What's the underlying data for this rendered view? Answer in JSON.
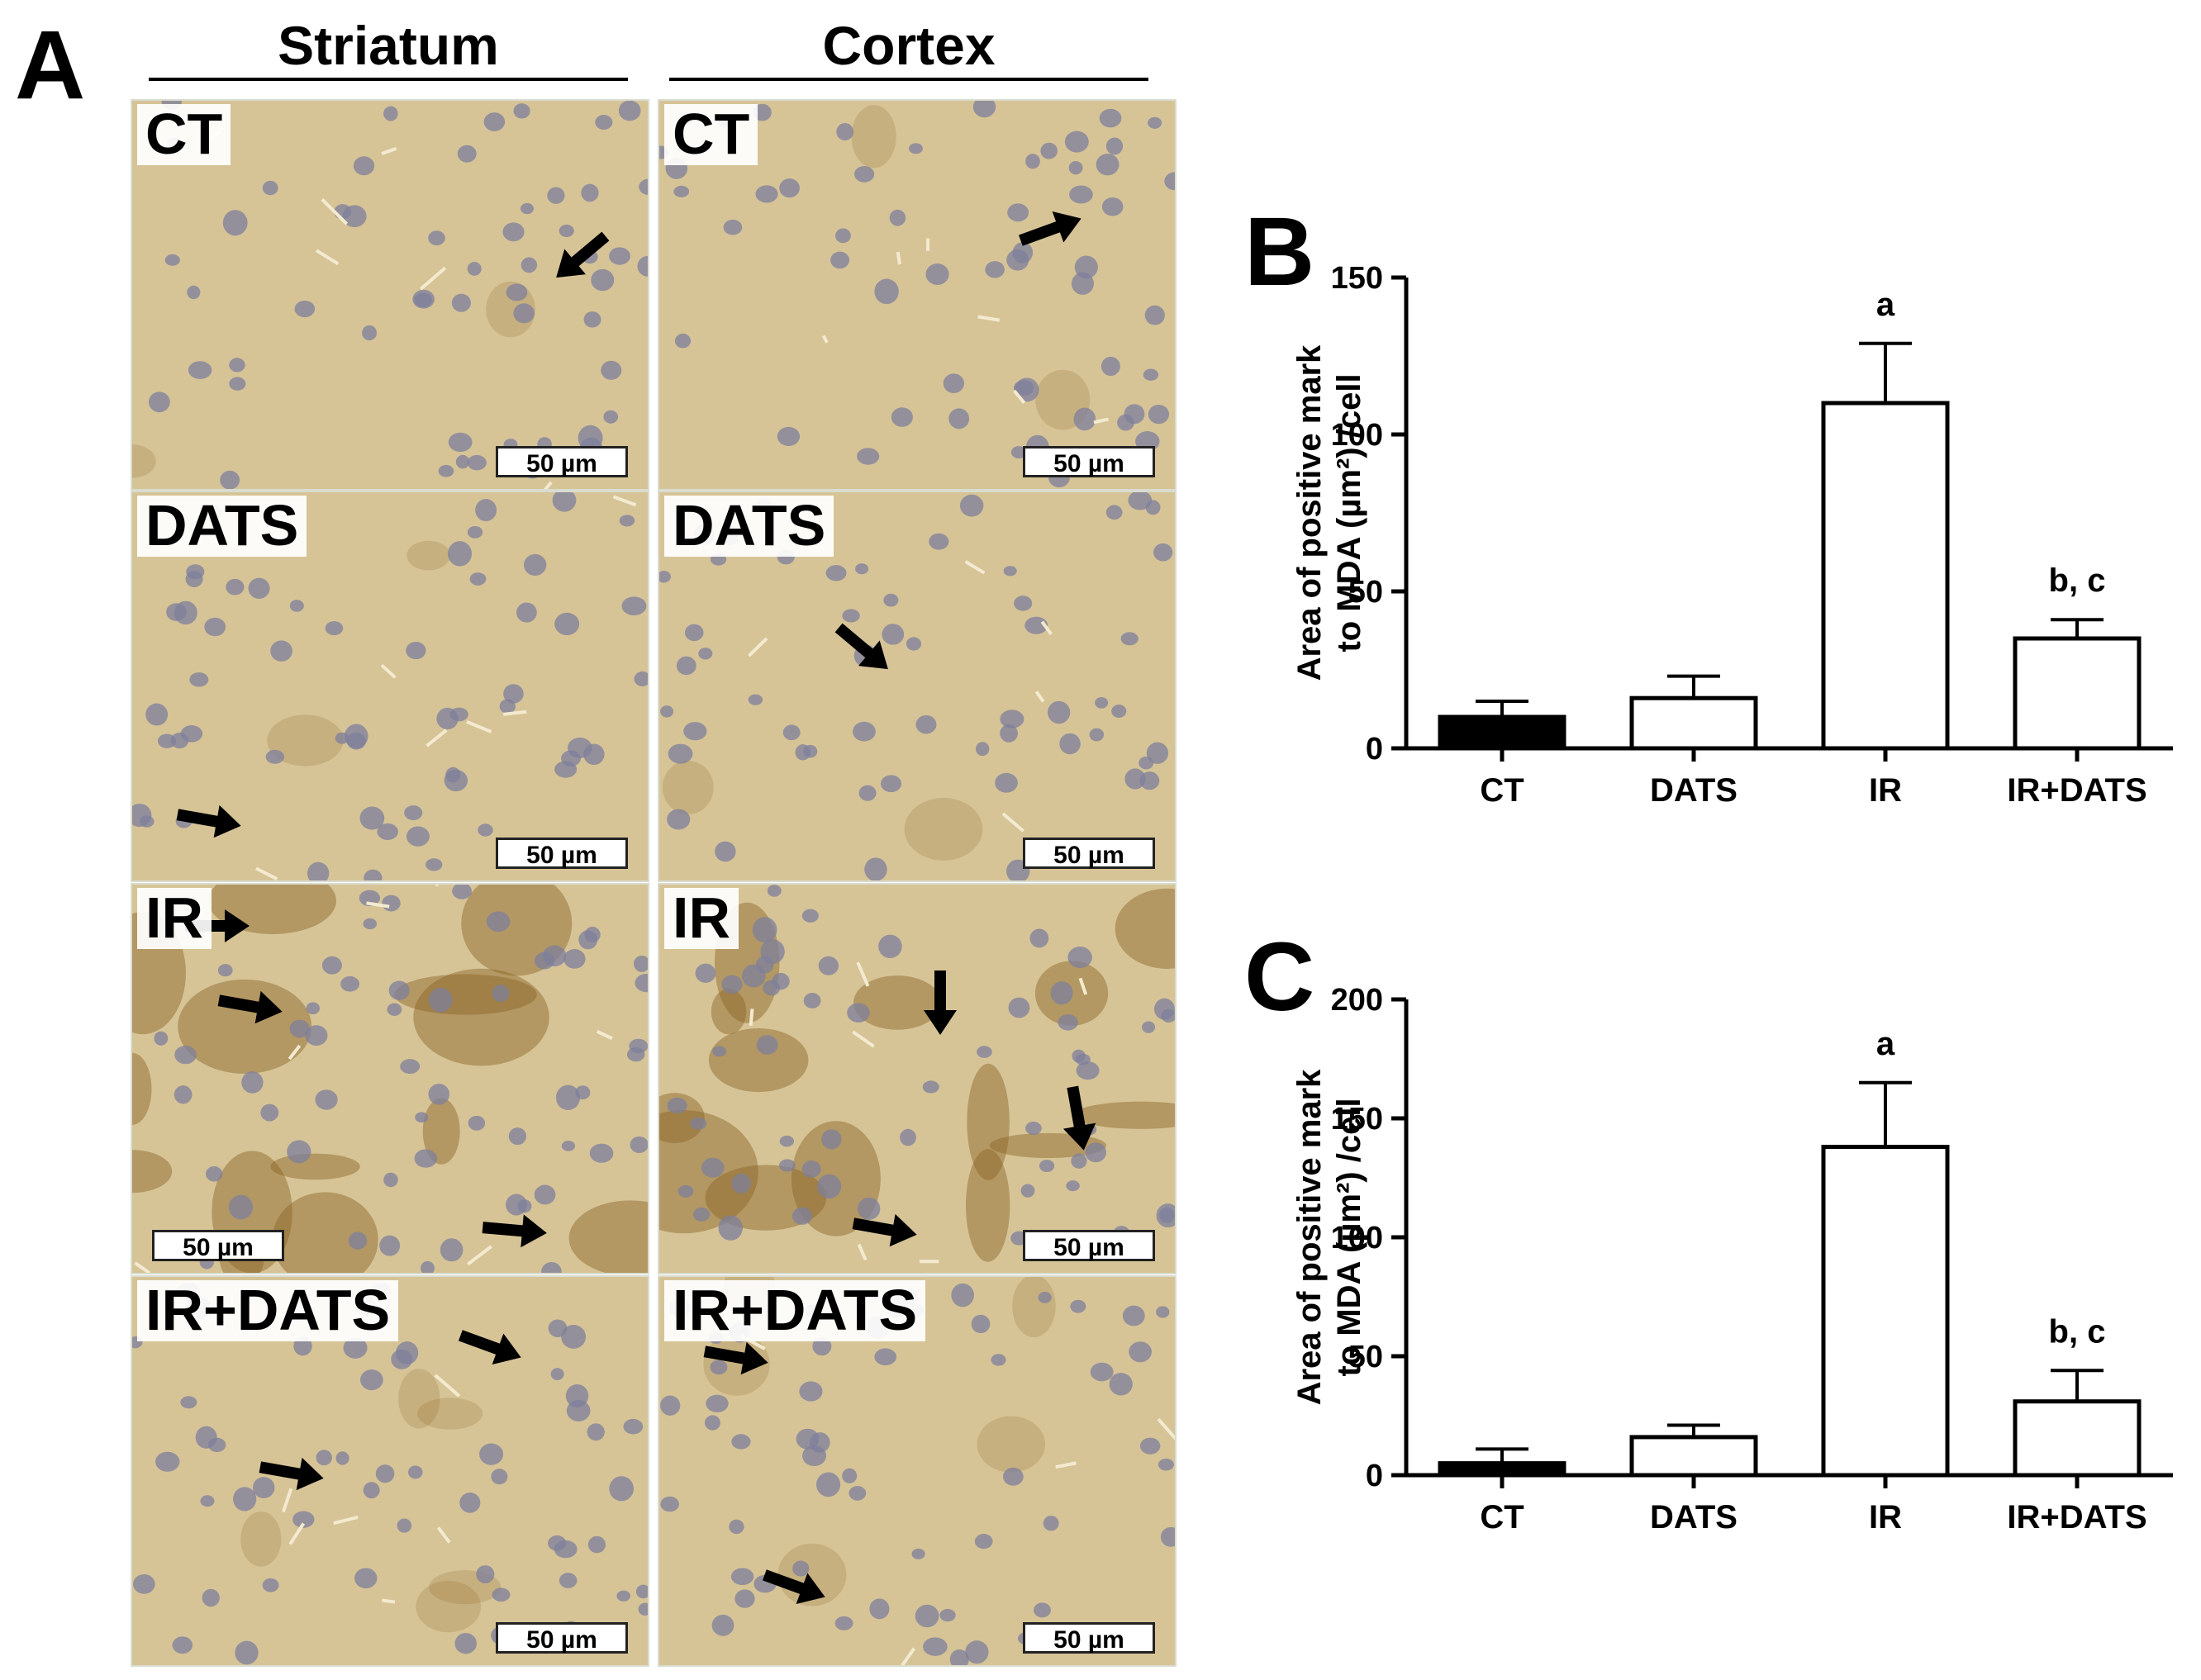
{
  "panel_a": {
    "letter": "A",
    "columns": [
      "Striatum",
      "Cortex"
    ],
    "rows": [
      "CT",
      "DATS",
      "IR",
      "IR+DATS"
    ],
    "scale_label": "50 µm",
    "tile_colors": {
      "background": "#d6c497",
      "nucleus": "#7d7f9c",
      "stain": "#8a6424",
      "arrow": "#000000"
    }
  },
  "chart_data": [
    {
      "type": "bar",
      "panel": "B",
      "categories": [
        "CT",
        "DATS",
        "IR",
        "IR+DATS"
      ],
      "values": [
        10,
        16,
        110,
        35
      ],
      "error": [
        5,
        7,
        19,
        6
      ],
      "annotations": [
        "",
        "",
        "a",
        "b, c"
      ],
      "ylabel_line1": "Area of positive mark",
      "ylabel_line2": "to MDA (µm²) /cell",
      "yticks": [
        0,
        50,
        100,
        150
      ],
      "ylim": [
        0,
        150
      ],
      "bar_fills": [
        "#000000",
        "#ffffff",
        "#ffffff",
        "#ffffff"
      ]
    },
    {
      "type": "bar",
      "panel": "C",
      "categories": [
        "CT",
        "DATS",
        "IR",
        "IR+DATS"
      ],
      "values": [
        5,
        16,
        138,
        31
      ],
      "error": [
        6,
        5,
        27,
        13
      ],
      "annotations": [
        "",
        "",
        "a",
        "b, c"
      ],
      "ylabel_line1": "Area of positive mark",
      "ylabel_line2": "to MDA (µm²) /cell",
      "yticks": [
        0,
        50,
        100,
        150,
        200
      ],
      "ylim": [
        0,
        200
      ],
      "bar_fills": [
        "#000000",
        "#ffffff",
        "#ffffff",
        "#ffffff"
      ]
    }
  ]
}
